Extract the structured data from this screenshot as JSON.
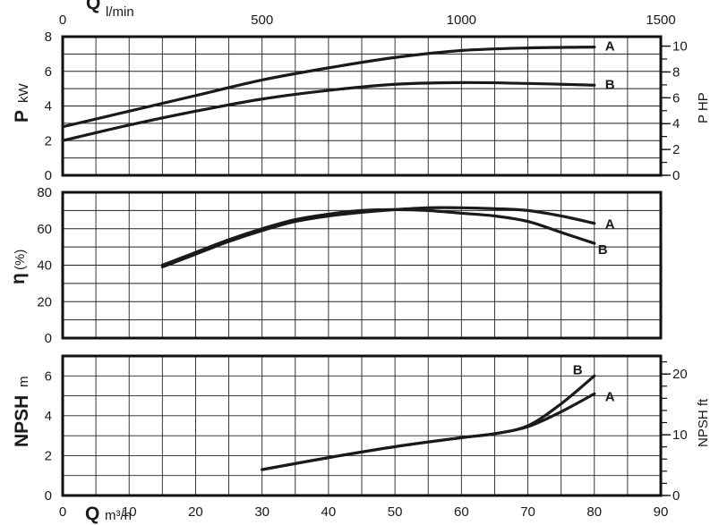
{
  "axes": {
    "top_q_symbol": "Q",
    "top_q_unit": "l/min",
    "bottom_q_symbol": "Q",
    "bottom_q_unit": "m³/h",
    "power_symbol": "P",
    "power_unit": "kW",
    "power_right_label": "P HP",
    "eff_symbol": "η",
    "eff_unit": "(%)",
    "npsh_symbol": "NPSH",
    "npsh_unit": "m",
    "npsh_right_label": "NPSH ft"
  },
  "chart_data": [
    {
      "type": "line",
      "panel": "power",
      "xlim": [
        0,
        90
      ],
      "ylim": [
        0,
        8
      ],
      "y2lim": [
        0,
        10.73
      ],
      "x_top_ticks": [
        0,
        500,
        1000,
        1500
      ],
      "x_top_range": [
        0,
        1500
      ],
      "y_ticks": [
        0,
        2,
        4,
        6,
        8
      ],
      "y2_ticks": [
        0,
        2,
        4,
        6,
        8,
        10
      ],
      "grid": true,
      "series": [
        {
          "name": "A",
          "x": [
            0,
            10,
            20,
            30,
            40,
            50,
            60,
            70,
            80
          ],
          "y": [
            2.8,
            3.7,
            4.6,
            5.5,
            6.2,
            6.8,
            7.2,
            7.35,
            7.4
          ]
        },
        {
          "name": "B",
          "x": [
            0,
            10,
            20,
            30,
            40,
            50,
            60,
            70,
            80
          ],
          "y": [
            2.0,
            2.9,
            3.7,
            4.4,
            4.9,
            5.25,
            5.35,
            5.3,
            5.2
          ]
        }
      ]
    },
    {
      "type": "line",
      "panel": "efficiency",
      "xlim": [
        0,
        90
      ],
      "ylim": [
        0,
        80
      ],
      "y_ticks": [
        0,
        20,
        40,
        60,
        80
      ],
      "grid": true,
      "series": [
        {
          "name": "A",
          "x": [
            15,
            20,
            25,
            30,
            35,
            40,
            45,
            50,
            55,
            60,
            65,
            70,
            75,
            80
          ],
          "y": [
            39,
            46,
            53,
            59,
            64,
            67,
            69,
            70.5,
            71.5,
            71.5,
            71,
            70,
            67,
            63
          ]
        },
        {
          "name": "B",
          "x": [
            15,
            20,
            25,
            30,
            35,
            40,
            45,
            50,
            55,
            60,
            65,
            70,
            75,
            80
          ],
          "y": [
            40,
            47,
            54,
            60,
            65,
            68,
            70,
            70.5,
            70,
            68.5,
            67,
            64,
            58,
            52
          ]
        }
      ]
    },
    {
      "type": "line",
      "panel": "npsh",
      "xlim": [
        0,
        90
      ],
      "ylim": [
        0,
        7
      ],
      "y2lim": [
        0,
        22.97
      ],
      "x_ticks": [
        0,
        10,
        20,
        30,
        40,
        50,
        60,
        70,
        80,
        90
      ],
      "y_ticks": [
        0,
        2,
        4,
        6
      ],
      "y2_ticks": [
        0,
        10,
        20
      ],
      "grid": true,
      "series": [
        {
          "name": "A",
          "x": [
            30,
            40,
            50,
            60,
            65,
            70,
            75,
            80
          ],
          "y": [
            1.3,
            1.9,
            2.45,
            2.9,
            3.1,
            3.45,
            4.2,
            5.1
          ]
        },
        {
          "name": "B",
          "x": [
            30,
            40,
            50,
            60,
            65,
            70,
            75,
            80
          ],
          "y": [
            1.3,
            1.9,
            2.45,
            2.9,
            3.1,
            3.5,
            4.6,
            6.0
          ]
        }
      ]
    }
  ]
}
